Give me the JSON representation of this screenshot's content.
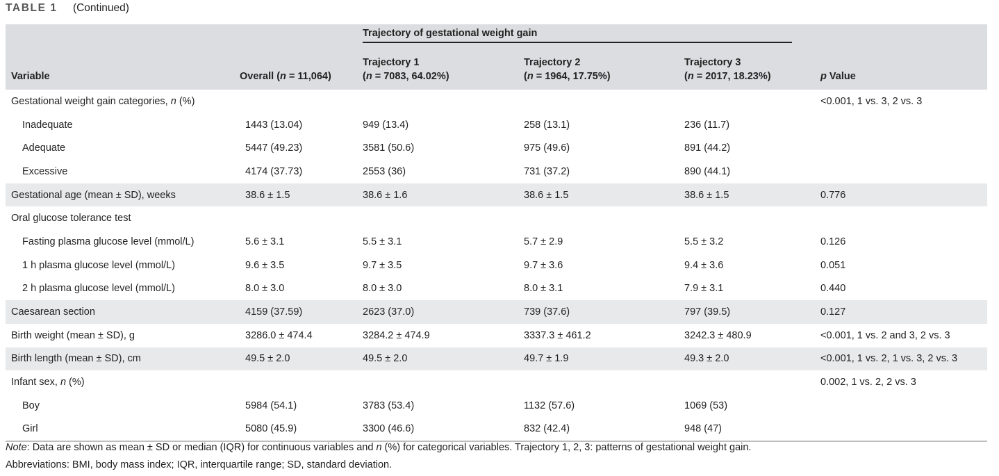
{
  "caption": {
    "label": "TABLE 1",
    "text": "(Continued)"
  },
  "header": {
    "group_title": "Trajectory of gestational weight gain",
    "variable": "Variable",
    "overall_a": "Overall (",
    "overall_n": "n",
    "overall_b": " = 11,064)",
    "t1_title": "Trajectory 1",
    "t1_n": "n",
    "t1_rest": " = 7083, 64.02%)",
    "t2_title": "Trajectory 2",
    "t2_n": "n",
    "t2_rest": " = 1964, 17.75%)",
    "t3_title": "Trajectory 3",
    "t3_n": "n",
    "t3_rest": " = 2017, 18.23%)",
    "open_paren": "(",
    "pvalue_p": "p",
    "pvalue_rest": " Value"
  },
  "rows": [
    {
      "variable": "Gestational weight gain categories, ",
      "var_italic": "n",
      "var_tail": " (%)",
      "indent": false,
      "shade": false,
      "overall": "",
      "t1": "",
      "t2": "",
      "t3": "",
      "p": "<0.001, 1 vs. 3, 2 vs. 3"
    },
    {
      "variable": "Inadequate",
      "indent": true,
      "shade": false,
      "overall": "1443 (13.04)",
      "t1": "949 (13.4)",
      "t2": "258 (13.1)",
      "t3": "236 (11.7)",
      "p": ""
    },
    {
      "variable": "Adequate",
      "indent": true,
      "shade": false,
      "overall": "5447 (49.23)",
      "t1": "3581 (50.6)",
      "t2": "975 (49.6)",
      "t3": "891 (44.2)",
      "p": ""
    },
    {
      "variable": "Excessive",
      "indent": true,
      "shade": false,
      "overall": "4174 (37.73)",
      "t1": "2553 (36)",
      "t2": "731 (37.2)",
      "t3": "890 (44.1)",
      "p": ""
    },
    {
      "variable": "Gestational age (mean ± SD), weeks",
      "indent": false,
      "shade": true,
      "overall": "38.6 ± 1.5",
      "t1": "38.6 ± 1.6",
      "t2": "38.6 ± 1.5",
      "t3": "38.6 ± 1.5",
      "p": "0.776"
    },
    {
      "variable": "Oral glucose tolerance test",
      "indent": false,
      "shade": false,
      "overall": "",
      "t1": "",
      "t2": "",
      "t3": "",
      "p": ""
    },
    {
      "variable": "Fasting plasma glucose level (mmol/L)",
      "indent": true,
      "shade": false,
      "overall": "5.6 ± 3.1",
      "t1": "5.5 ± 3.1",
      "t2": "5.7 ± 2.9",
      "t3": "5.5 ± 3.2",
      "p": "0.126"
    },
    {
      "variable": "1 h plasma glucose level (mmol/L)",
      "indent": true,
      "shade": false,
      "overall": "9.6 ± 3.5",
      "t1": "9.7 ± 3.5",
      "t2": "9.7 ± 3.6",
      "t3": "9.4 ± 3.6",
      "p": "0.051"
    },
    {
      "variable": "2 h plasma glucose level (mmol/L)",
      "indent": true,
      "shade": false,
      "overall": "8.0 ± 3.0",
      "t1": "8.0 ± 3.0",
      "t2": "8.0 ± 3.1",
      "t3": "7.9 ± 3.1",
      "p": "0.440"
    },
    {
      "variable": "Caesarean section",
      "indent": false,
      "shade": true,
      "overall": "4159 (37.59)",
      "t1": "2623 (37.0)",
      "t2": "739 (37.6)",
      "t3": "797 (39.5)",
      "p": "0.127"
    },
    {
      "variable": "Birth weight (mean ± SD), g",
      "indent": false,
      "shade": false,
      "overall": "3286.0 ± 474.4",
      "t1": "3284.2 ± 474.9",
      "t2": "3337.3 ± 461.2",
      "t3": "3242.3 ± 480.9",
      "p": "<0.001, 1 vs. 2 and 3, 2 vs. 3"
    },
    {
      "variable": "Birth length (mean ± SD), cm",
      "indent": false,
      "shade": true,
      "overall": "49.5 ± 2.0",
      "t1": "49.5 ± 2.0",
      "t2": "49.7 ± 1.9",
      "t3": "49.3 ± 2.0",
      "p": "<0.001, 1 vs. 2, 1 vs. 3, 2 vs. 3"
    },
    {
      "variable": "Infant sex, ",
      "var_italic": "n",
      "var_tail": " (%)",
      "indent": false,
      "shade": false,
      "overall": "",
      "t1": "",
      "t2": "",
      "t3": "",
      "p": "0.002, 1 vs. 2, 2 vs. 3"
    },
    {
      "variable": "Boy",
      "indent": true,
      "shade": false,
      "overall": "5984 (54.1)",
      "t1": "3783 (53.4)",
      "t2": "1132 (57.6)",
      "t3": "1069 (53)",
      "p": ""
    },
    {
      "variable": "Girl",
      "indent": true,
      "shade": false,
      "overall": "5080 (45.9)",
      "t1": "3300 (46.6)",
      "t2": "832 (42.4)",
      "t3": "948 (47)",
      "p": ""
    }
  ],
  "notes": {
    "note_label": "Note",
    "note_a": ": Data are shown as mean ± SD or median (IQR) for continuous variables and ",
    "note_n": "n",
    "note_b": " (%) for categorical variables. Trajectory 1, 2, 3: patterns of gestational weight gain.",
    "abbreviations": "Abbreviations: BMI, body mass index; IQR, interquartile range; SD, standard deviation."
  }
}
